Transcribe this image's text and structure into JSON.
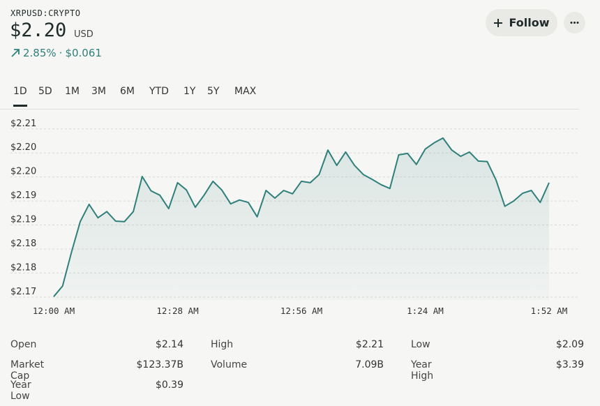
{
  "header": {
    "symbol": "XRPUSD:CRYPTO",
    "price": "$2.20",
    "currency": "USD",
    "change_percent": "2.85%",
    "separator": "·",
    "change_amount": "$0.061"
  },
  "buttons": {
    "follow": "Follow"
  },
  "ranges": {
    "items": [
      "1D",
      "5D",
      "1M",
      "3M",
      "6M",
      "YTD",
      "1Y",
      "5Y",
      "MAX"
    ],
    "active": 0
  },
  "chart_data": {
    "type": "line",
    "categories": [
      "12:00 AM",
      null,
      null,
      null,
      null,
      null,
      null,
      null,
      null,
      null,
      null,
      null,
      null,
      null,
      "12:28 AM",
      null,
      null,
      null,
      null,
      null,
      null,
      null,
      null,
      null,
      null,
      null,
      null,
      null,
      "12:56 AM",
      null,
      null,
      null,
      null,
      null,
      null,
      null,
      null,
      null,
      null,
      null,
      null,
      null,
      "1:24 AM",
      null,
      null,
      null,
      null,
      null,
      null,
      null,
      null,
      null,
      null,
      null,
      null,
      null,
      "1:52 AM"
    ],
    "series": [
      {
        "name": "XRPUSD",
        "color": "#2f7f7b",
        "values": [
          2.1701,
          2.1723,
          2.1793,
          2.1857,
          2.1893,
          2.1865,
          2.1878,
          2.1858,
          2.1857,
          2.1878,
          2.1951,
          2.1921,
          2.1912,
          2.1884,
          2.1938,
          2.1923,
          2.1887,
          2.1912,
          2.1941,
          2.1923,
          2.1894,
          2.1902,
          2.1897,
          2.1867,
          2.1922,
          2.1906,
          2.1922,
          2.1915,
          2.1941,
          2.1938,
          2.1955,
          2.2006,
          2.1974,
          2.2002,
          2.1974,
          2.1955,
          2.1945,
          2.1934,
          2.1926,
          2.1996,
          2.1999,
          2.1976,
          2.2008,
          2.2021,
          2.2031,
          2.2006,
          2.1993,
          2.2002,
          2.1983,
          2.1982,
          2.1944,
          2.1889,
          2.19,
          2.1916,
          2.1922,
          2.1897,
          2.1938
        ]
      }
    ],
    "ylim": [
      2.1694,
      2.2086
    ],
    "yticks": [
      {
        "value": 2.205,
        "label": "$2.21"
      },
      {
        "value": 2.2,
        "label": "$2.20"
      },
      {
        "value": 2.195,
        "label": "$2.20"
      },
      {
        "value": 2.19,
        "label": "$2.19"
      },
      {
        "value": 2.185,
        "label": "$2.19"
      },
      {
        "value": 2.18,
        "label": "$2.18"
      },
      {
        "value": 2.175,
        "label": "$2.18"
      },
      {
        "value": 2.17,
        "label": "$2.17"
      }
    ],
    "grid": true
  },
  "stats": [
    [
      {
        "label": "Open",
        "value": "$2.14"
      },
      {
        "label": "High",
        "value": "$2.21"
      },
      {
        "label": "Low",
        "value": "$2.09"
      }
    ],
    [
      {
        "label": "Market Cap",
        "value": "$123.37B"
      },
      {
        "label": "Volume",
        "value": "7.09B"
      },
      {
        "label": "Year High",
        "value": "$3.39"
      }
    ],
    [
      {
        "label": "Year Low",
        "value": "$0.39"
      }
    ]
  ]
}
